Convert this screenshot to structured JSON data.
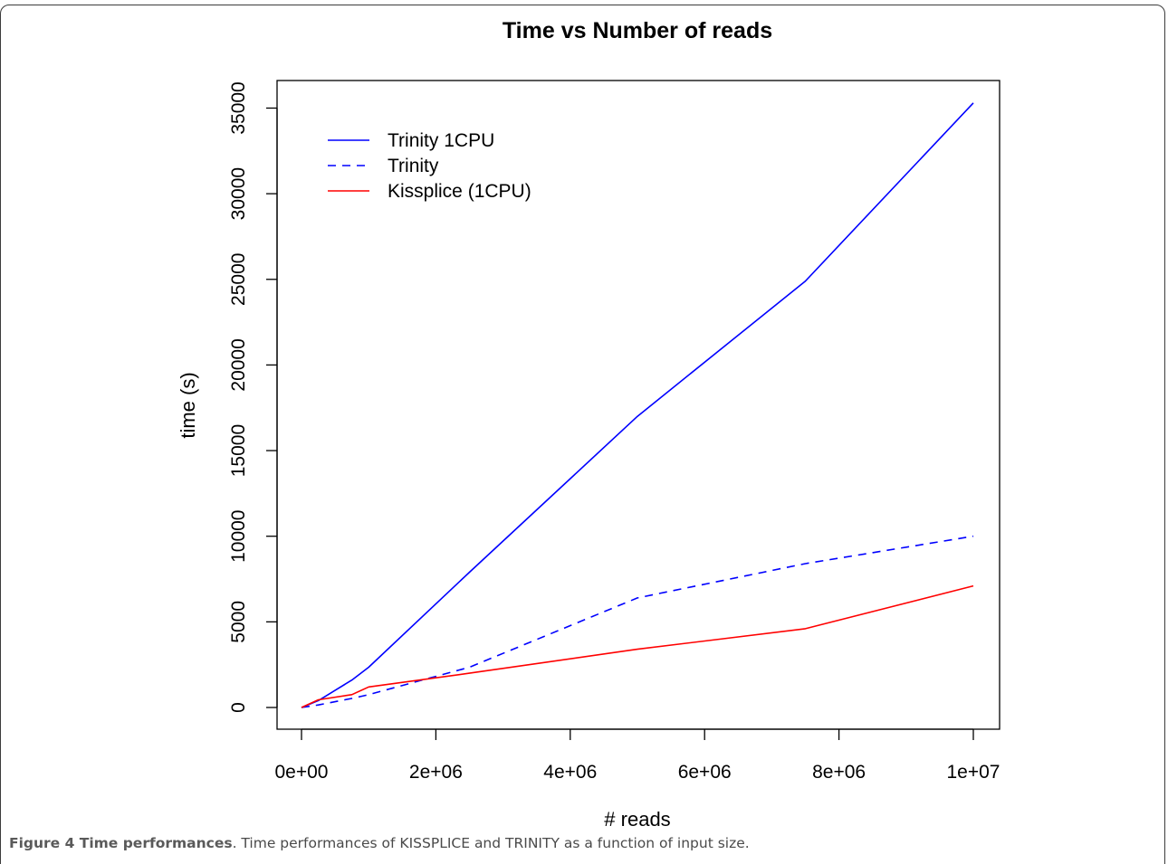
{
  "chart_data": {
    "type": "line",
    "title": "Time vs Number of reads",
    "xlabel": "# reads",
    "ylabel": "time (s)",
    "xlim": [
      0,
      10000000
    ],
    "ylim": [
      0,
      35500
    ],
    "x_ticks": [
      {
        "value": 0,
        "label": "0e+00"
      },
      {
        "value": 2000000,
        "label": "2e+06"
      },
      {
        "value": 4000000,
        "label": "4e+06"
      },
      {
        "value": 6000000,
        "label": "6e+06"
      },
      {
        "value": 8000000,
        "label": "8e+06"
      },
      {
        "value": 10000000,
        "label": "1e+07"
      }
    ],
    "y_ticks": [
      {
        "value": 0,
        "label": "0"
      },
      {
        "value": 5000,
        "label": "5000"
      },
      {
        "value": 10000,
        "label": "10000"
      },
      {
        "value": 15000,
        "label": "15000"
      },
      {
        "value": 20000,
        "label": "20000"
      },
      {
        "value": 25000,
        "label": "25000"
      },
      {
        "value": 30000,
        "label": "30000"
      },
      {
        "value": 35000,
        "label": "35000"
      }
    ],
    "grid": false,
    "legend_position": "top-left",
    "series": [
      {
        "name": "Trinity 1CPU",
        "color": "#0000ff",
        "dash": "solid",
        "x": [
          0,
          250000,
          750000,
          1000000,
          2500000,
          5000000,
          7500000,
          10000000
        ],
        "y": [
          0,
          400,
          1600,
          2350,
          7900,
          17000,
          24900,
          35300
        ]
      },
      {
        "name": "Trinity",
        "color": "#0000ff",
        "dash": "dashed",
        "x": [
          0,
          250000,
          750000,
          1000000,
          2500000,
          5000000,
          7500000,
          10000000
        ],
        "y": [
          0,
          150,
          530,
          750,
          2350,
          6400,
          8400,
          10000
        ]
      },
      {
        "name": "Kissplice (1CPU)",
        "color": "#ff0000",
        "dash": "solid",
        "x": [
          0,
          250000,
          750000,
          1000000,
          2500000,
          5000000,
          7500000,
          10000000
        ],
        "y": [
          0,
          450,
          750,
          1200,
          2000,
          3400,
          4600,
          7100
        ]
      }
    ]
  },
  "caption": {
    "lead": "Figure 4 Time performances",
    "text": ". Time performances of KISSPLICE and TRINITY as a function of input size."
  }
}
